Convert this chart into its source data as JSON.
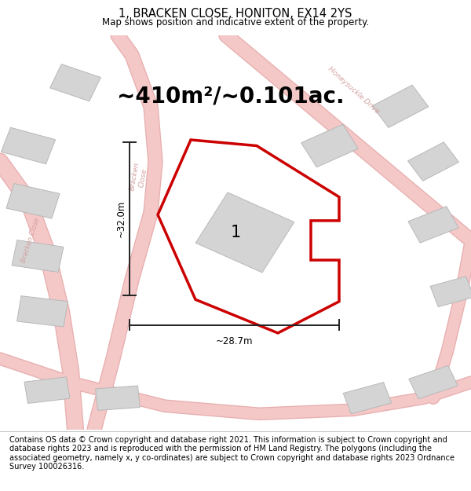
{
  "title": "1, BRACKEN CLOSE, HONITON, EX14 2YS",
  "subtitle": "Map shows position and indicative extent of the property.",
  "area_text": "~410m²/~0.101ac.",
  "dim_width": "~28.7m",
  "dim_height": "~32.0m",
  "plot_label": "1",
  "footer": "Contains OS data © Crown copyright and database right 2021. This information is subject to Crown copyright and database rights 2023 and is reproduced with the permission of HM Land Registry. The polygons (including the associated geometry, namely x, y co-ordinates) are subject to Crown copyright and database rights 2023 Ordnance Survey 100026316.",
  "bg_color": "#eeeeee",
  "road_color": "#f5c8c8",
  "road_edge_color": "#e8b0b0",
  "building_fill": "#d8d8d8",
  "building_outline": "#bbbbbb",
  "plot_fill": "#f0f0f0",
  "plot_outline_color": "#cc0000",
  "dim_line_color": "#222222",
  "street_label_color": "#d4a0a0",
  "title_fontsize": 10.5,
  "subtitle_fontsize": 8.5,
  "area_fontsize": 20,
  "label_fontsize": 15,
  "footer_fontsize": 7.0,
  "road_lw": 12,
  "plot_lw": 2.5
}
